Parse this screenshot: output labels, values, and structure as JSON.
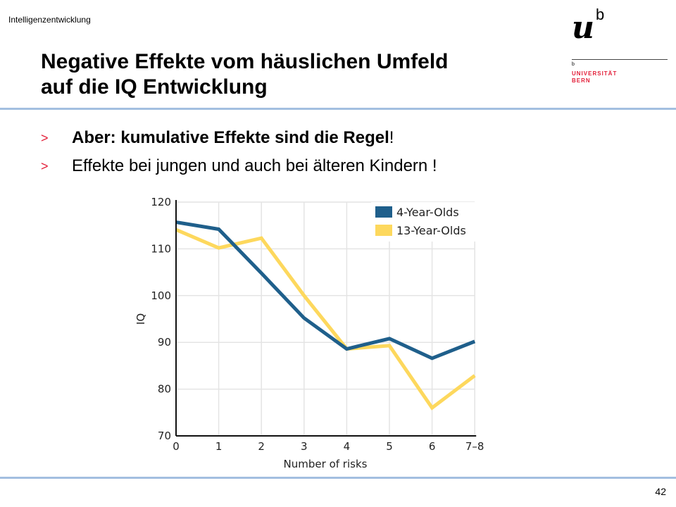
{
  "header": {
    "topic": "Intelligenzentwicklung",
    "title_line1": "Negative Effekte vom häuslichen Umfeld",
    "title_line2": "auf die IQ Entwicklung"
  },
  "logo": {
    "mark": "u b",
    "small": "b",
    "line1": "UNIVERSITÄT",
    "line2": "BERN"
  },
  "bullets": [
    {
      "marker": ">",
      "bold": "Aber: kumulative Effekte sind die Regel",
      "rest": "!"
    },
    {
      "marker": ">",
      "bold": "",
      "rest": "Effekte bei jungen und auch bei älteren Kindern !"
    }
  ],
  "footer": {
    "page": "42"
  },
  "colors": {
    "accent": "#e3203a",
    "rule": "#a3bfe0"
  },
  "chart_data": {
    "type": "line",
    "categories": [
      "0",
      "1",
      "2",
      "3",
      "4",
      "5",
      "6",
      "7–8"
    ],
    "series": [
      {
        "name": "4-Year-Olds",
        "color": "#1f5f8b",
        "values": [
          115.7,
          114.2,
          104.8,
          95.2,
          88.6,
          90.8,
          86.6,
          90.2
        ]
      },
      {
        "name": "13-Year-Olds",
        "color": "#fdd85d",
        "values": [
          114.1,
          110.2,
          112.3,
          100.0,
          88.6,
          89.3,
          76.0,
          82.9
        ]
      }
    ],
    "xlabel": "Number of risks",
    "ylabel": "IQ",
    "ylim": [
      70,
      120
    ],
    "yticks": [
      70,
      80,
      90,
      100,
      110,
      120
    ],
    "grid": true,
    "legend": "top-right"
  }
}
